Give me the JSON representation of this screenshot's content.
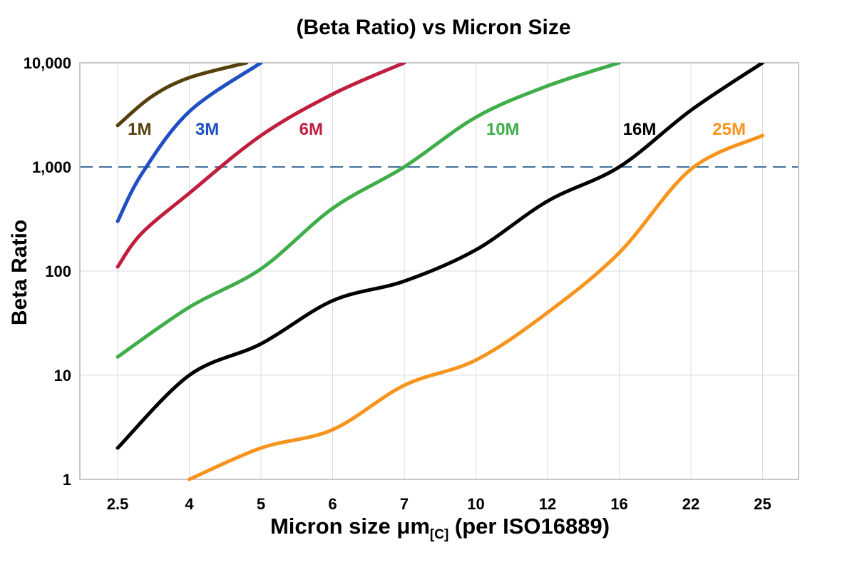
{
  "title": "(Beta Ratio) vs Micron Size",
  "colors": {
    "background": "#ffffff",
    "gridline": "#dcdcdc",
    "plot_border": "#b3b3b3",
    "reference_line": "#41719c"
  },
  "chart_data": {
    "type": "line",
    "title": "(Beta Ratio) vs Micron Size",
    "xlabel": "Micron size μm[C] (per ISO16889)",
    "xlabel_main": "Micron size μm",
    "xlabel_sub": "[C]",
    "xlabel_rest": " (per ISO16889)",
    "ylabel": "Beta Ratio",
    "x_scale": "category",
    "x_categories": [
      2.5,
      4,
      5,
      6,
      7,
      10,
      12,
      16,
      22,
      25
    ],
    "x_tick_labels": [
      "2.5",
      "4",
      "5",
      "6",
      "7",
      "10",
      "12",
      "16",
      "22",
      "25"
    ],
    "y_scale": "log",
    "ylim": [
      1,
      10000
    ],
    "y_tick_values": [
      1,
      10,
      100,
      1000,
      10000
    ],
    "y_tick_labels": [
      "1",
      "10",
      "100",
      "1,000",
      "10,000"
    ],
    "grid": true,
    "legend_position": "inline-labels",
    "reference_line": {
      "y": 1000,
      "style": "dashed",
      "color": "#41719c"
    },
    "series": [
      {
        "name": "1M",
        "color": "#55400e",
        "label": {
          "x": 2.96,
          "y": 2300
        },
        "points": [
          {
            "x": 2.5,
            "y": 2500
          },
          {
            "x": 3.2,
            "y": 4700
          },
          {
            "x": 4,
            "y": 7200
          },
          {
            "x": 4.8,
            "y": 10000
          }
        ]
      },
      {
        "name": "3M",
        "color": "#1f4fc3",
        "label": {
          "x": 4.25,
          "y": 2300
        },
        "points": [
          {
            "x": 2.5,
            "y": 300
          },
          {
            "x": 3,
            "y": 850
          },
          {
            "x": 4,
            "y": 3400
          },
          {
            "x": 5,
            "y": 10000
          }
        ]
      },
      {
        "name": "6M",
        "color": "#c01e3e",
        "label": {
          "x": 5.7,
          "y": 2300
        },
        "points": [
          {
            "x": 2.5,
            "y": 110
          },
          {
            "x": 3,
            "y": 230
          },
          {
            "x": 4,
            "y": 560
          },
          {
            "x": 5,
            "y": 2000
          },
          {
            "x": 6,
            "y": 5000
          },
          {
            "x": 7,
            "y": 10000
          }
        ]
      },
      {
        "name": "10M",
        "color": "#3fae49",
        "label": {
          "x": 10.75,
          "y": 2300
        },
        "points": [
          {
            "x": 2.5,
            "y": 15
          },
          {
            "x": 4,
            "y": 45
          },
          {
            "x": 5,
            "y": 105
          },
          {
            "x": 6,
            "y": 400
          },
          {
            "x": 7,
            "y": 1000
          },
          {
            "x": 10,
            "y": 3000
          },
          {
            "x": 12,
            "y": 6000
          },
          {
            "x": 16,
            "y": 10000
          }
        ]
      },
      {
        "name": "16M",
        "color": "#000000",
        "label": {
          "x": 17.7,
          "y": 2300
        },
        "points": [
          {
            "x": 2.5,
            "y": 2
          },
          {
            "x": 4,
            "y": 10
          },
          {
            "x": 5,
            "y": 20
          },
          {
            "x": 6,
            "y": 52
          },
          {
            "x": 7,
            "y": 80
          },
          {
            "x": 10,
            "y": 160
          },
          {
            "x": 12,
            "y": 470
          },
          {
            "x": 16,
            "y": 1000
          },
          {
            "x": 22,
            "y": 3500
          },
          {
            "x": 25,
            "y": 10000
          }
        ]
      },
      {
        "name": "25M",
        "color": "#f7941e",
        "label": {
          "x": 23.6,
          "y": 2300
        },
        "points": [
          {
            "x": 4,
            "y": 1
          },
          {
            "x": 5,
            "y": 2
          },
          {
            "x": 6,
            "y": 3
          },
          {
            "x": 7,
            "y": 8
          },
          {
            "x": 10,
            "y": 14
          },
          {
            "x": 12,
            "y": 40
          },
          {
            "x": 16,
            "y": 150
          },
          {
            "x": 22,
            "y": 950
          },
          {
            "x": 25,
            "y": 2000
          }
        ]
      }
    ]
  }
}
